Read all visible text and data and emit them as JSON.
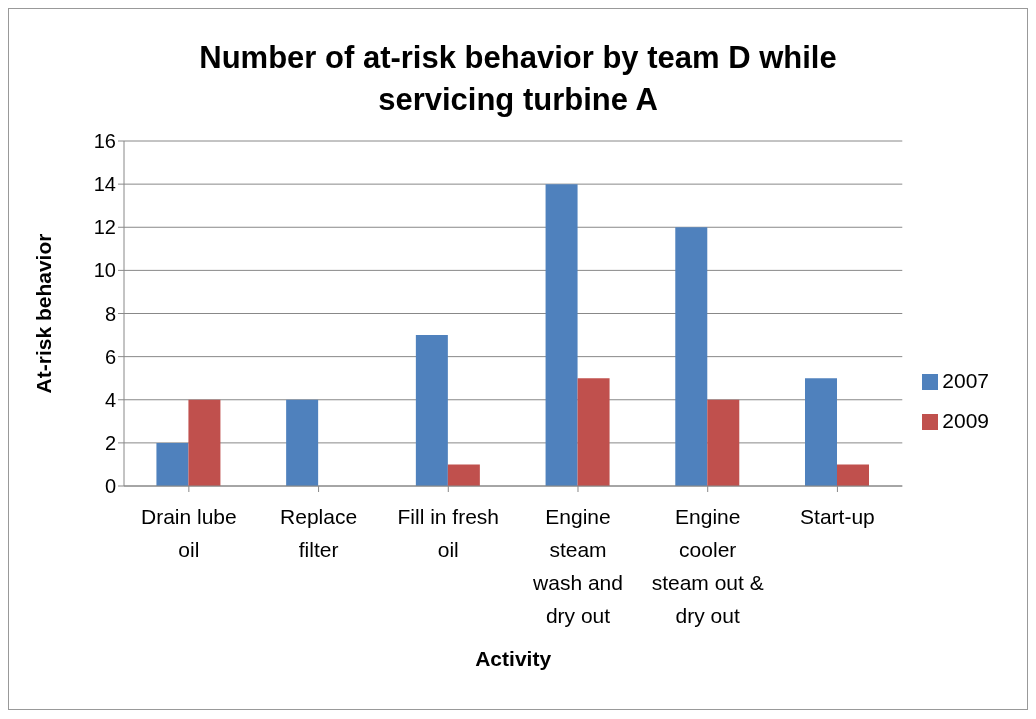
{
  "chart_data": {
    "type": "bar",
    "title": "Number of at-risk behavior by team D while servicing turbine A",
    "xlabel": "Activity",
    "ylabel": "At-risk behavior",
    "categories": [
      "Drain lube oil",
      "Replace filter",
      "Fill in fresh oil",
      "Engine steam wash and dry out",
      "Engine cooler steam out & dry out",
      "Start-up"
    ],
    "series": [
      {
        "name": "2007",
        "color": "#4f81bd",
        "values": [
          2,
          4,
          7,
          14,
          12,
          5
        ]
      },
      {
        "name": "2009",
        "color": "#c0504d",
        "values": [
          4,
          0,
          1,
          5,
          4,
          1
        ]
      }
    ],
    "ylim": [
      0,
      16
    ],
    "yticks": [
      0,
      2,
      4,
      6,
      8,
      10,
      12,
      14,
      16
    ],
    "grid": "y",
    "legend": "right"
  }
}
